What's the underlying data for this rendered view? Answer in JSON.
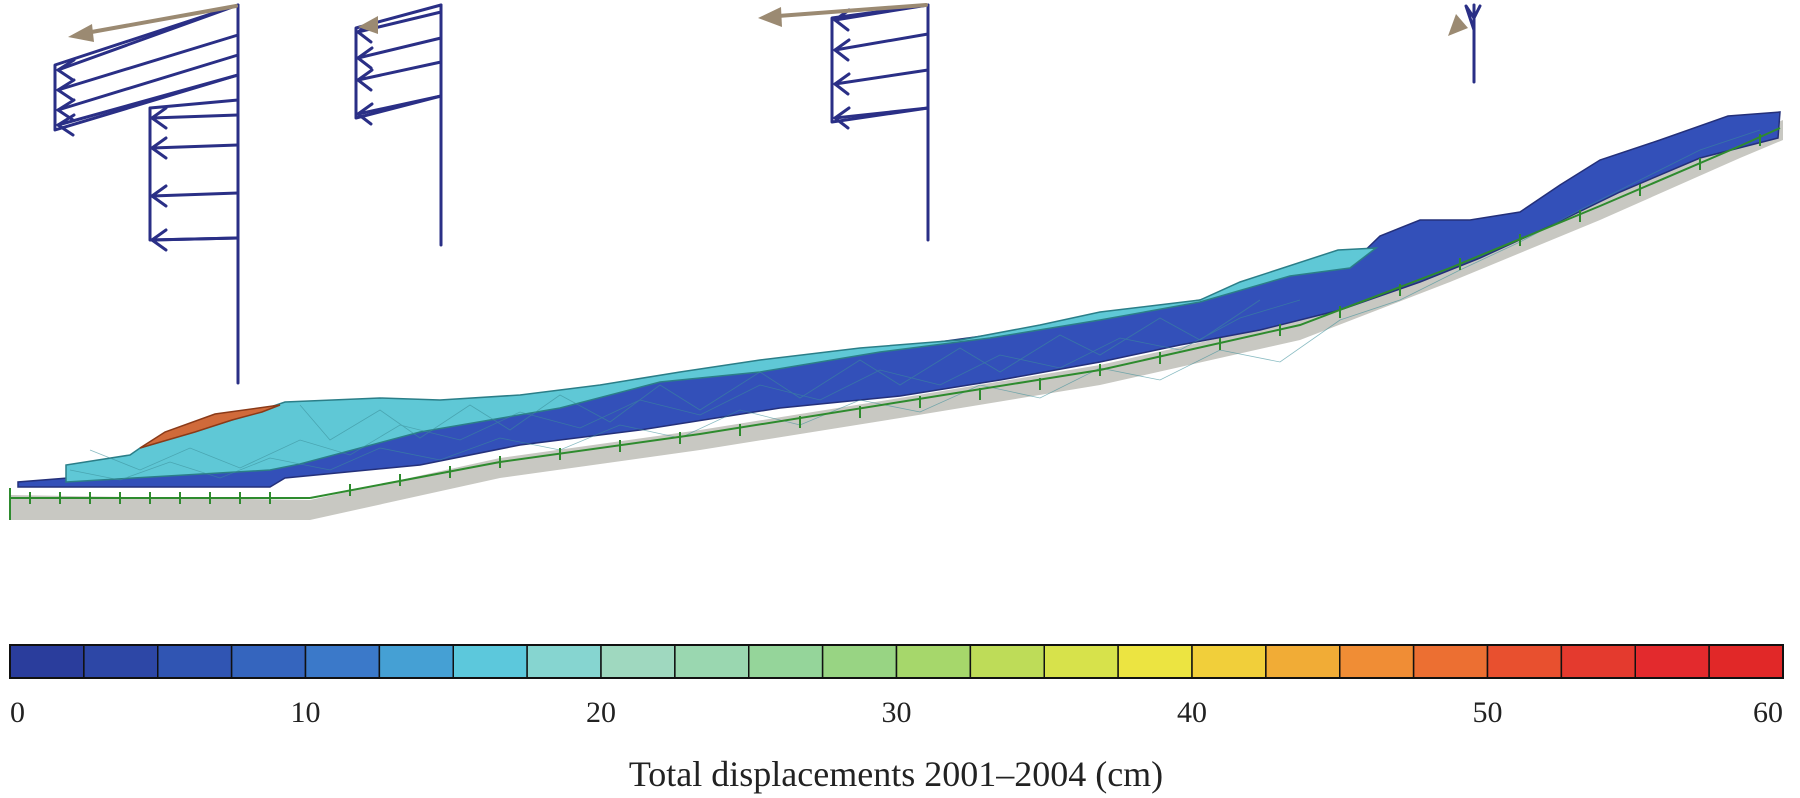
{
  "colorbar": {
    "min": 0,
    "max": 60,
    "step": 2.5,
    "tick_values": [
      0,
      10,
      20,
      30,
      40,
      50,
      60
    ],
    "tick_labels": [
      "0",
      "10",
      "20",
      "30",
      "40",
      "50",
      "60"
    ],
    "caption": "Total displacements 2001–2004 (cm)",
    "colors": [
      "#2a3d9c",
      "#2d47a6",
      "#3055b3",
      "#3565be",
      "#3b79c9",
      "#45a0d4",
      "#5cc8dc",
      "#86d5d0",
      "#9fd8bf",
      "#9ad7b0",
      "#95d59a",
      "#98d483",
      "#a6d76b",
      "#bedc58",
      "#d7e24b",
      "#ece441",
      "#f1cf3a",
      "#f1ac36",
      "#f08d35",
      "#ec6f32",
      "#e8502f",
      "#e43a2e",
      "#e32a2d",
      "#e12828"
    ]
  },
  "colors": {
    "arrow_blue": "#2a2f86",
    "arrow_resultant": "#9b8a72",
    "slope_blue": "#3350b9",
    "slope_cyan": "#5fc8d6",
    "slope_orange": "#d06a3a",
    "bedrock": "#c8c8c2",
    "fixity": "#2e8b2e",
    "mesh": "#5aa0a0"
  }
}
